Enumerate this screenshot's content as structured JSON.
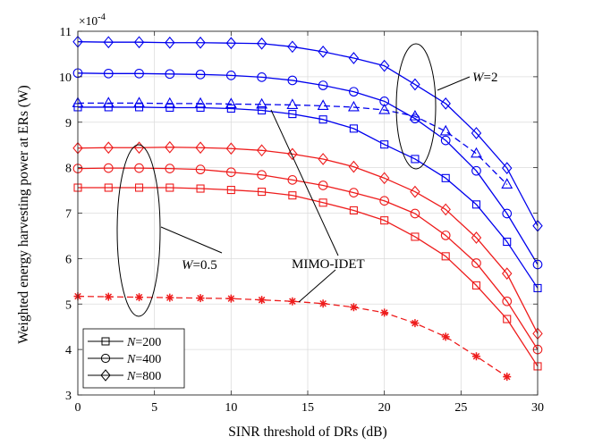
{
  "chart_data": {
    "type": "line",
    "title": "",
    "xlabel": "SINR threshold of DRs (dB)",
    "ylabel": "Weighted energy harvesting power at ERs (W)",
    "exponent_base": "×10",
    "exponent_power": "-4",
    "xlim": [
      0,
      30
    ],
    "ylim": [
      3,
      11
    ],
    "xticks": [
      0,
      5,
      10,
      15,
      20,
      25,
      30
    ],
    "yticks": [
      3,
      4,
      5,
      6,
      7,
      8,
      9,
      10,
      11
    ],
    "grid": true,
    "legend_position": "bottom-left",
    "legend": [
      {
        "label_var": "N",
        "label_rest": "=200",
        "marker": "square"
      },
      {
        "label_var": "N",
        "label_rest": "=400",
        "marker": "circle"
      },
      {
        "label_var": "N",
        "label_rest": "=800",
        "marker": "diamond"
      }
    ],
    "annotations": [
      {
        "var": "W",
        "rest": "=2"
      },
      {
        "var": "W",
        "rest": "=0.5"
      },
      {
        "text": "MIMO-IDET"
      }
    ],
    "colors": {
      "w2": "#0000ee",
      "w05": "#ee1c1c"
    },
    "series": [
      {
        "name": "W=2, N=800",
        "group": "w2",
        "marker": "diamond",
        "dash": false,
        "x": [
          0,
          2,
          4,
          6,
          8,
          10,
          12,
          14,
          16,
          18,
          20,
          22,
          24,
          26,
          28,
          30
        ],
        "y": [
          10.77,
          10.76,
          10.76,
          10.75,
          10.75,
          10.74,
          10.73,
          10.66,
          10.55,
          10.41,
          10.24,
          9.83,
          9.41,
          8.76,
          7.99,
          6.72
        ]
      },
      {
        "name": "W=2, N=400",
        "group": "w2",
        "marker": "circle",
        "dash": false,
        "x": [
          0,
          2,
          4,
          6,
          8,
          10,
          12,
          14,
          16,
          18,
          20,
          22,
          24,
          26,
          28,
          30
        ],
        "y": [
          10.08,
          10.07,
          10.07,
          10.06,
          10.05,
          10.03,
          9.99,
          9.92,
          9.81,
          9.67,
          9.46,
          9.08,
          8.6,
          7.93,
          6.99,
          5.87
        ]
      },
      {
        "name": "W=2, N=200",
        "group": "w2",
        "marker": "square",
        "dash": false,
        "x": [
          0,
          2,
          4,
          6,
          8,
          10,
          12,
          14,
          16,
          18,
          20,
          22,
          24,
          26,
          28,
          30
        ],
        "y": [
          9.33,
          9.33,
          9.33,
          9.32,
          9.32,
          9.3,
          9.26,
          9.18,
          9.06,
          8.86,
          8.51,
          8.19,
          7.77,
          7.19,
          6.37,
          5.35
        ]
      },
      {
        "name": "W=2, MIMO-IDET",
        "group": "w2",
        "marker": "triangle",
        "dash": true,
        "x": [
          0,
          2,
          4,
          6,
          8,
          10,
          12,
          14,
          16,
          18,
          20,
          22,
          24,
          26,
          28
        ],
        "y": [
          9.42,
          9.42,
          9.42,
          9.41,
          9.41,
          9.4,
          9.39,
          9.38,
          9.36,
          9.33,
          9.27,
          9.13,
          8.8,
          8.31,
          7.63
        ]
      },
      {
        "name": "W=0.5, N=800",
        "group": "w05",
        "marker": "diamond",
        "dash": false,
        "x": [
          0,
          2,
          4,
          6,
          8,
          10,
          12,
          14,
          16,
          18,
          20,
          22,
          24,
          26,
          28,
          30
        ],
        "y": [
          8.43,
          8.44,
          8.44,
          8.45,
          8.44,
          8.42,
          8.38,
          8.3,
          8.19,
          8.02,
          7.77,
          7.47,
          7.08,
          6.46,
          5.67,
          4.35
        ]
      },
      {
        "name": "W=0.5, N=400",
        "group": "w05",
        "marker": "circle",
        "dash": false,
        "x": [
          0,
          2,
          4,
          6,
          8,
          10,
          12,
          14,
          16,
          18,
          20,
          22,
          24,
          26,
          28,
          30
        ],
        "y": [
          7.98,
          7.99,
          7.99,
          7.98,
          7.96,
          7.9,
          7.84,
          7.73,
          7.61,
          7.45,
          7.27,
          6.99,
          6.51,
          5.9,
          5.06,
          4.0
        ]
      },
      {
        "name": "W=0.5, N=200",
        "group": "w05",
        "marker": "square",
        "dash": false,
        "x": [
          0,
          2,
          4,
          6,
          8,
          10,
          12,
          14,
          16,
          18,
          20,
          22,
          24,
          26,
          28,
          30
        ],
        "y": [
          7.56,
          7.56,
          7.56,
          7.56,
          7.54,
          7.51,
          7.47,
          7.39,
          7.23,
          7.06,
          6.84,
          6.48,
          6.05,
          5.41,
          4.67,
          3.63
        ]
      },
      {
        "name": "W=0.5, MIMO-IDET",
        "group": "w05",
        "marker": "star",
        "dash": true,
        "x": [
          0,
          2,
          4,
          6,
          8,
          10,
          12,
          14,
          16,
          18,
          20,
          22,
          24,
          26,
          28
        ],
        "y": [
          5.17,
          5.16,
          5.15,
          5.14,
          5.13,
          5.12,
          5.09,
          5.06,
          5.01,
          4.93,
          4.81,
          4.58,
          4.28,
          3.85,
          3.4
        ]
      }
    ]
  }
}
